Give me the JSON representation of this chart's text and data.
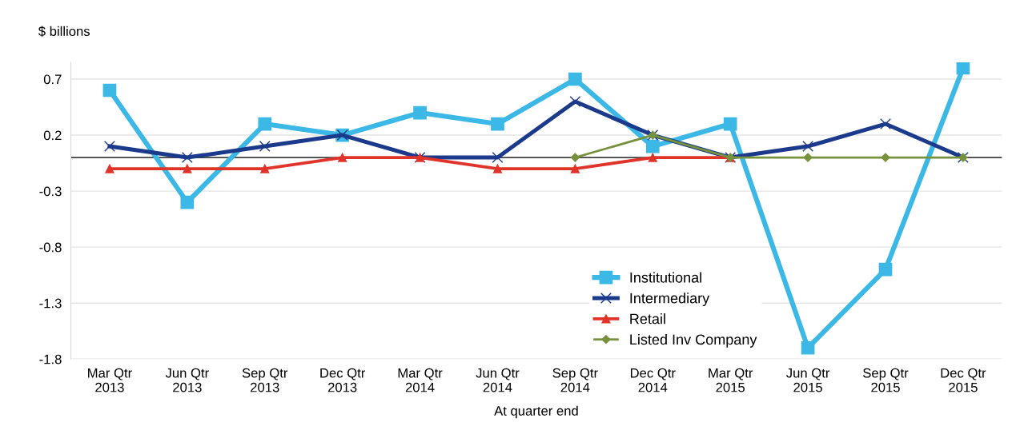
{
  "chart_data": {
    "type": "line",
    "ylabel": "$ billions",
    "xlabel": "At quarter end",
    "categories": [
      "Mar Qtr\n2013",
      "Jun Qtr\n2013",
      "Sep Qtr\n2013",
      "Dec Qtr\n2013",
      "Mar Qtr\n2014",
      "Jun Qtr\n2014",
      "Sep Qtr\n2014",
      "Dec Qtr\n2014",
      "Mar Qtr\n2015",
      "Jun Qtr\n2015",
      "Sep Qtr\n2015",
      "Dec Qtr\n2015"
    ],
    "series": [
      {
        "name": "Institutional",
        "color": "#3cb8e6",
        "marker": "square",
        "values": [
          0.6,
          -0.4,
          0.3,
          0.2,
          0.4,
          0.3,
          0.7,
          0.1,
          0.3,
          -1.7,
          -1.0,
          0.8
        ]
      },
      {
        "name": "Intermediary",
        "color": "#1b3a8c",
        "marker": "cross",
        "values": [
          0.1,
          0,
          0.1,
          0.2,
          0,
          0,
          0.5,
          0.2,
          0,
          0.1,
          0.3,
          0
        ]
      },
      {
        "name": "Retail",
        "color": "#e0342a",
        "marker": "triangle",
        "values": [
          -0.1,
          -0.1,
          -0.1,
          0,
          0,
          -0.1,
          -0.1,
          0,
          0,
          null,
          null,
          null
        ]
      },
      {
        "name": "Listed Inv Company",
        "color": "#76923c",
        "marker": "diamond",
        "values": [
          null,
          null,
          null,
          null,
          null,
          null,
          0,
          0.2,
          0,
          0,
          0,
          0
        ]
      }
    ],
    "ylim": [
      -1.8,
      0.85
    ],
    "yticks": [
      {
        "value": 0.7,
        "label": "0.7"
      },
      {
        "value": 0.2,
        "label": "0.2"
      },
      {
        "value": -0.3,
        "label": "-0.3"
      },
      {
        "value": -0.8,
        "label": "-0.8"
      },
      {
        "value": -1.3,
        "label": "-1.3"
      },
      {
        "value": -1.8,
        "label": "-1.8"
      }
    ],
    "ref_lines": [
      {
        "axis": "y",
        "value": 0,
        "color": "#404040"
      }
    ],
    "grid": "y",
    "legend": "bottom right",
    "line_style": "solid"
  }
}
